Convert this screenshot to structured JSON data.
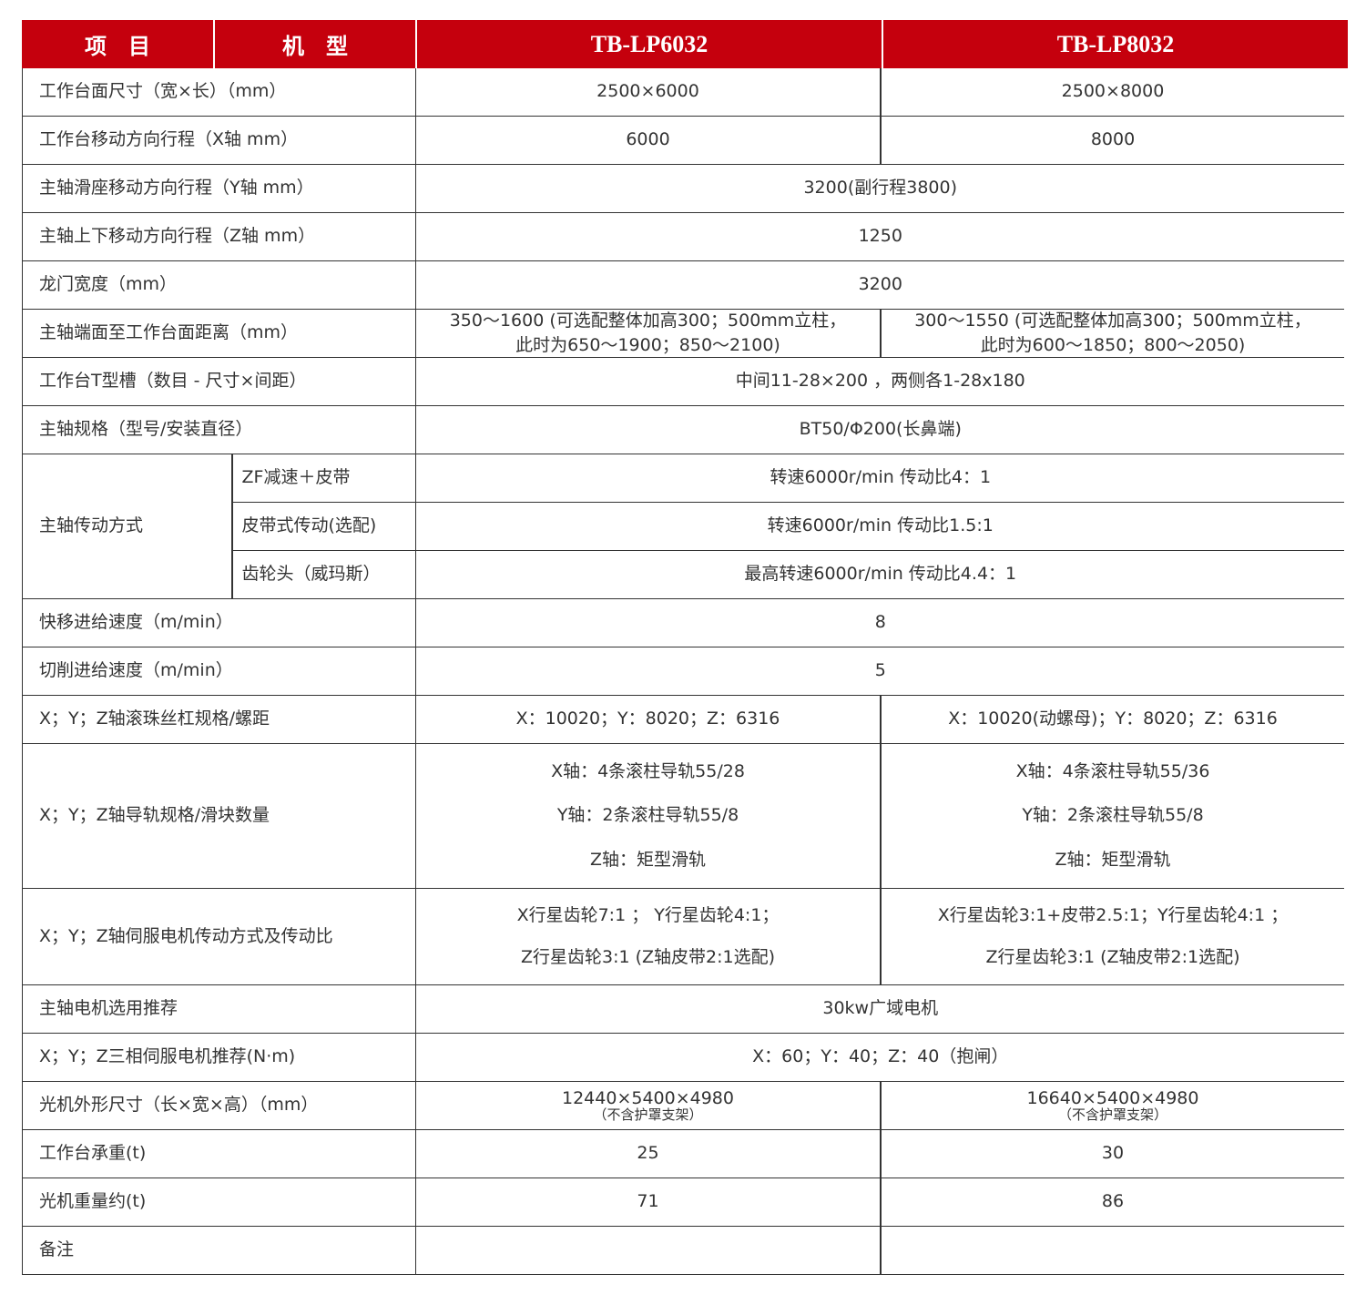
{
  "header": {
    "col_item": "项　目",
    "col_model": "机　型",
    "models": [
      "TB-LP6032",
      "TB-LP8032"
    ]
  },
  "colors": {
    "header_bg": "#c5000d",
    "header_text": "#ffffff",
    "border": "#333333"
  },
  "rows": [
    {
      "label": "工作台面尺寸（宽×长）（mm）",
      "values": [
        [
          "2500×6000"
        ],
        [
          "2500×8000"
        ]
      ]
    },
    {
      "label": "工作台移动方向行程（X轴 mm）",
      "values": [
        [
          "6000"
        ],
        [
          "8000"
        ]
      ]
    },
    {
      "label": "主轴滑座移动方向行程（Y轴 mm）",
      "values": [
        [
          "3200(副行程3800)"
        ]
      ]
    },
    {
      "label": "主轴上下移动方向行程（Z轴 mm）",
      "values": [
        [
          "1250"
        ]
      ]
    },
    {
      "label": "龙门宽度（mm）",
      "values": [
        [
          "3200"
        ]
      ]
    },
    {
      "label": "主轴端面至工作台面距离（mm）",
      "values": [
        [
          "350～1600 (可选配整体加高300；500mm立柱，",
          "此时为650～1900；850～2100)"
        ],
        [
          "300～1550 (可选配整体加高300；500mm立柱，",
          "此时为600～1850；800～2050)"
        ]
      ]
    },
    {
      "label": "工作台T型槽（数目 - 尺寸×间距）",
      "values": [
        [
          "中间11-28×200 ，两侧各1-28x180"
        ]
      ]
    },
    {
      "label": "主轴规格（型号/安装直径）",
      "values": [
        [
          "BT50/Φ200(长鼻端)"
        ]
      ]
    },
    {
      "label": "主轴传动方式",
      "subs": [
        {
          "sub": "ZF减速＋皮带",
          "values": [
            [
              "转速6000r/min 传动比4：1"
            ]
          ]
        },
        {
          "sub": "皮带式传动(选配)",
          "values": [
            [
              "转速6000r/min 传动比1.5:1"
            ]
          ]
        },
        {
          "sub": "齿轮头（威玛斯）",
          "values": [
            [
              "最高转速6000r/min 传动比4.4：1"
            ]
          ]
        }
      ]
    },
    {
      "label": "快移进给速度（m/min）",
      "values": [
        [
          "8"
        ]
      ]
    },
    {
      "label": "切削进给速度（m/min）",
      "values": [
        [
          "5"
        ]
      ]
    },
    {
      "label": "X；Y；Z轴滚珠丝杠规格/螺距",
      "values": [
        [
          "X：10020；Y：8020；Z：6316"
        ],
        [
          "X：10020(动螺母)；Y：8020；Z：6316"
        ]
      ]
    },
    {
      "label": "X；Y；Z轴导轨规格/滑块数量",
      "tall": 3,
      "values": [
        [
          "X轴：4条滚柱导轨55/28",
          "Y轴：2条滚柱导轨55/8",
          "Z轴：矩型滑轨"
        ],
        [
          "X轴：4条滚柱导轨55/36",
          "Y轴：2条滚柱导轨55/8",
          "Z轴：矩型滑轨"
        ]
      ]
    },
    {
      "label": "X；Y；Z轴伺服电机传动方式及传动比",
      "tall": 2,
      "values": [
        [
          "X行星齿轮7:1 ； Y行星齿轮4:1；",
          "Z行星齿轮3:1 (Z轴皮带2:1选配)"
        ],
        [
          "X行星齿轮3:1+皮带2.5:1；Y行星齿轮4:1 ；",
          "Z行星齿轮3:1 (Z轴皮带2:1选配)"
        ]
      ]
    },
    {
      "label": "主轴电机选用推荐",
      "values": [
        [
          "30kw广域电机"
        ]
      ]
    },
    {
      "label": "X；Y；Z三相伺服电机推荐(N·m)",
      "values": [
        [
          "X：60；Y：40；Z：40（抱闸）"
        ]
      ]
    },
    {
      "label": "光机外形尺寸（长×宽×高）（mm）",
      "values": [
        [
          "12440×5400×4980"
        ],
        [
          "16640×5400×4980"
        ]
      ],
      "notes": [
        "（不含护罩支架）",
        "（不含护罩支架）"
      ]
    },
    {
      "label": "工作台承重(t)",
      "values": [
        [
          "25"
        ],
        [
          "30"
        ]
      ]
    },
    {
      "label": "光机重量约(t)",
      "values": [
        [
          "71"
        ],
        [
          "86"
        ]
      ]
    },
    {
      "label": "备注",
      "values": [
        [],
        []
      ]
    }
  ]
}
